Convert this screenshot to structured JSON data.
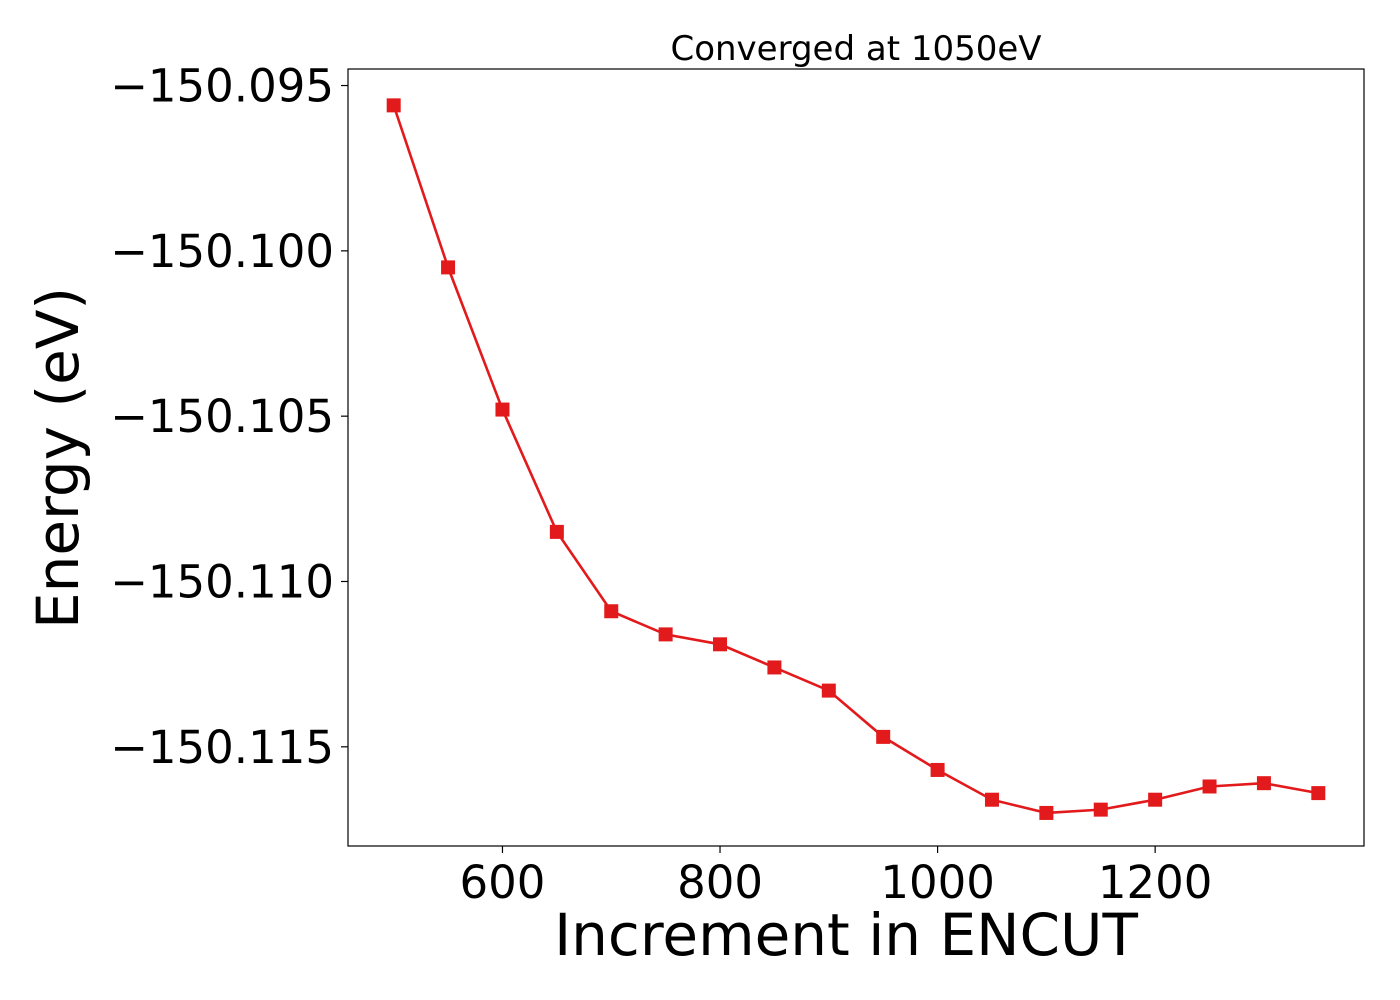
{
  "chart_data": {
    "type": "line",
    "title": "Converged at 1050eV",
    "xlabel": "Increment in ENCUT",
    "ylabel": "Energy (eV)",
    "xlim": [
      458,
      1392
    ],
    "ylim": [
      -150.118,
      -150.0945
    ],
    "xticks": [
      600,
      800,
      1000,
      1200
    ],
    "xtick_labels": [
      "600",
      "800",
      "1000",
      "1200"
    ],
    "yticks": [
      -150.095,
      -150.1,
      -150.105,
      -150.11,
      -150.115
    ],
    "ytick_labels": [
      "−150.095",
      "−150.100",
      "−150.105",
      "−150.110",
      "−150.115"
    ],
    "grid": false,
    "legend": false,
    "color": "#e31a1c",
    "marker": "square",
    "series": [
      {
        "x": [
          500,
          550,
          600,
          650,
          700,
          750,
          800,
          850,
          900,
          950,
          1000,
          1050,
          1100,
          1150,
          1200,
          1250,
          1300,
          1350
        ],
        "y": [
          -150.0956,
          -150.1005,
          -150.1048,
          -150.1085,
          -150.1109,
          -150.1116,
          -150.1119,
          -150.1126,
          -150.1133,
          -150.1147,
          -150.1157,
          -150.1166,
          -150.117,
          -150.1169,
          -150.1166,
          -150.1162,
          -150.1161,
          -150.1164
        ]
      }
    ]
  }
}
